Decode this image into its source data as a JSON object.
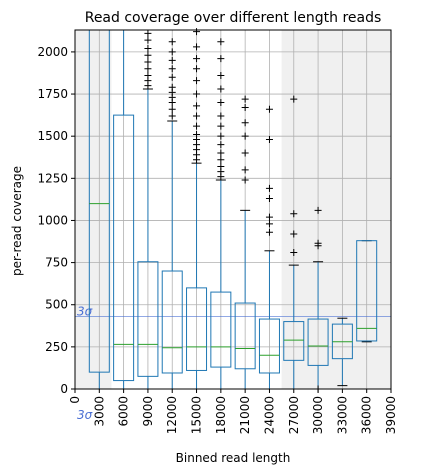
{
  "chart_data": {
    "type": "box",
    "title": "Read coverage over different length reads",
    "xlabel": "Binned read length",
    "ylabel": "per-read coverage",
    "ylim": [
      0,
      2130
    ],
    "xlim": [
      0,
      39000
    ],
    "grid": true,
    "x_ticks": [
      "0",
      "3000",
      "6000",
      "9000",
      "12000",
      "15000",
      "18000",
      "21000",
      "24000",
      "27000",
      "30000",
      "33000",
      "36000",
      "39000"
    ],
    "x_tick_values": [
      0,
      3000,
      6000,
      9000,
      12000,
      15000,
      18000,
      21000,
      24000,
      27000,
      30000,
      33000,
      36000,
      39000
    ],
    "y_ticks": [
      0,
      250,
      500,
      750,
      1000,
      1250,
      1500,
      1750,
      2000
    ],
    "shaded_regions": [
      {
        "from": 0,
        "to": 4500,
        "color": "#f0f0f0"
      },
      {
        "from": 25500,
        "to": 39000,
        "color": "#f0f0f0"
      }
    ],
    "sigma_lines": [
      {
        "axis": "y",
        "value": 430,
        "label": "3σ",
        "color": "#4a6fd3"
      },
      {
        "axis": "x",
        "value": 0,
        "label": "3σ",
        "color": "#4a6fd3"
      }
    ],
    "box_color": "#1f77b4",
    "median_color": "#2ca02c",
    "boxes": [
      {
        "x": 3000,
        "q1": 100,
        "median": 1100,
        "q3": 2130,
        "whisker_low": 0,
        "whisker_high": 2130,
        "outliers": []
      },
      {
        "x": 6000,
        "q1": 50,
        "median": 265,
        "q3": 1625,
        "whisker_low": 0,
        "whisker_high": 2130,
        "outliers": []
      },
      {
        "x": 9000,
        "q1": 75,
        "median": 265,
        "q3": 755,
        "whisker_low": 0,
        "whisker_high": 1780,
        "outliers": [
          1800,
          1830,
          1860,
          1900,
          1940,
          1980,
          2020,
          2070,
          2110
        ]
      },
      {
        "x": 12000,
        "q1": 95,
        "median": 245,
        "q3": 700,
        "whisker_low": 0,
        "whisker_high": 1590,
        "outliers": [
          1620,
          1660,
          1700,
          1730,
          1760,
          1790,
          1850,
          1900,
          1950,
          2000,
          2060
        ]
      },
      {
        "x": 15000,
        "q1": 110,
        "median": 250,
        "q3": 600,
        "whisker_low": 0,
        "whisker_high": 1340,
        "outliers": [
          1360,
          1390,
          1420,
          1450,
          1480,
          1510,
          1560,
          1620,
          1680,
          1750,
          1830,
          1900,
          1960,
          2030,
          2120
        ]
      },
      {
        "x": 18000,
        "q1": 130,
        "median": 250,
        "q3": 575,
        "whisker_low": 0,
        "whisker_high": 1240,
        "outliers": [
          1260,
          1290,
          1320,
          1360,
          1400,
          1450,
          1500,
          1560,
          1620,
          1700,
          1780,
          1860,
          1960,
          2060
        ]
      },
      {
        "x": 21000,
        "q1": 120,
        "median": 240,
        "q3": 510,
        "whisker_low": 0,
        "whisker_high": 1060,
        "outliers": [
          1240,
          1300,
          1400,
          1500,
          1580,
          1670,
          1720
        ]
      },
      {
        "x": 24000,
        "q1": 95,
        "median": 200,
        "q3": 415,
        "whisker_low": 0,
        "whisker_high": 820,
        "outliers": [
          930,
          980,
          1020,
          1130,
          1190,
          1480,
          1660
        ]
      },
      {
        "x": 27000,
        "q1": 170,
        "median": 290,
        "q3": 400,
        "whisker_low": 0,
        "whisker_high": 735,
        "outliers": [
          810,
          920,
          1040,
          1720
        ]
      },
      {
        "x": 30000,
        "q1": 140,
        "median": 255,
        "q3": 415,
        "whisker_low": 0,
        "whisker_high": 755,
        "outliers": [
          850,
          865,
          1060,
          0
        ]
      },
      {
        "x": 33000,
        "q1": 180,
        "median": 280,
        "q3": 385,
        "whisker_low": 20,
        "whisker_high": 420,
        "outliers": []
      },
      {
        "x": 36000,
        "q1": 285,
        "median": 360,
        "q3": 880,
        "whisker_low": 280,
        "whisker_high": 880,
        "outliers": []
      }
    ]
  }
}
